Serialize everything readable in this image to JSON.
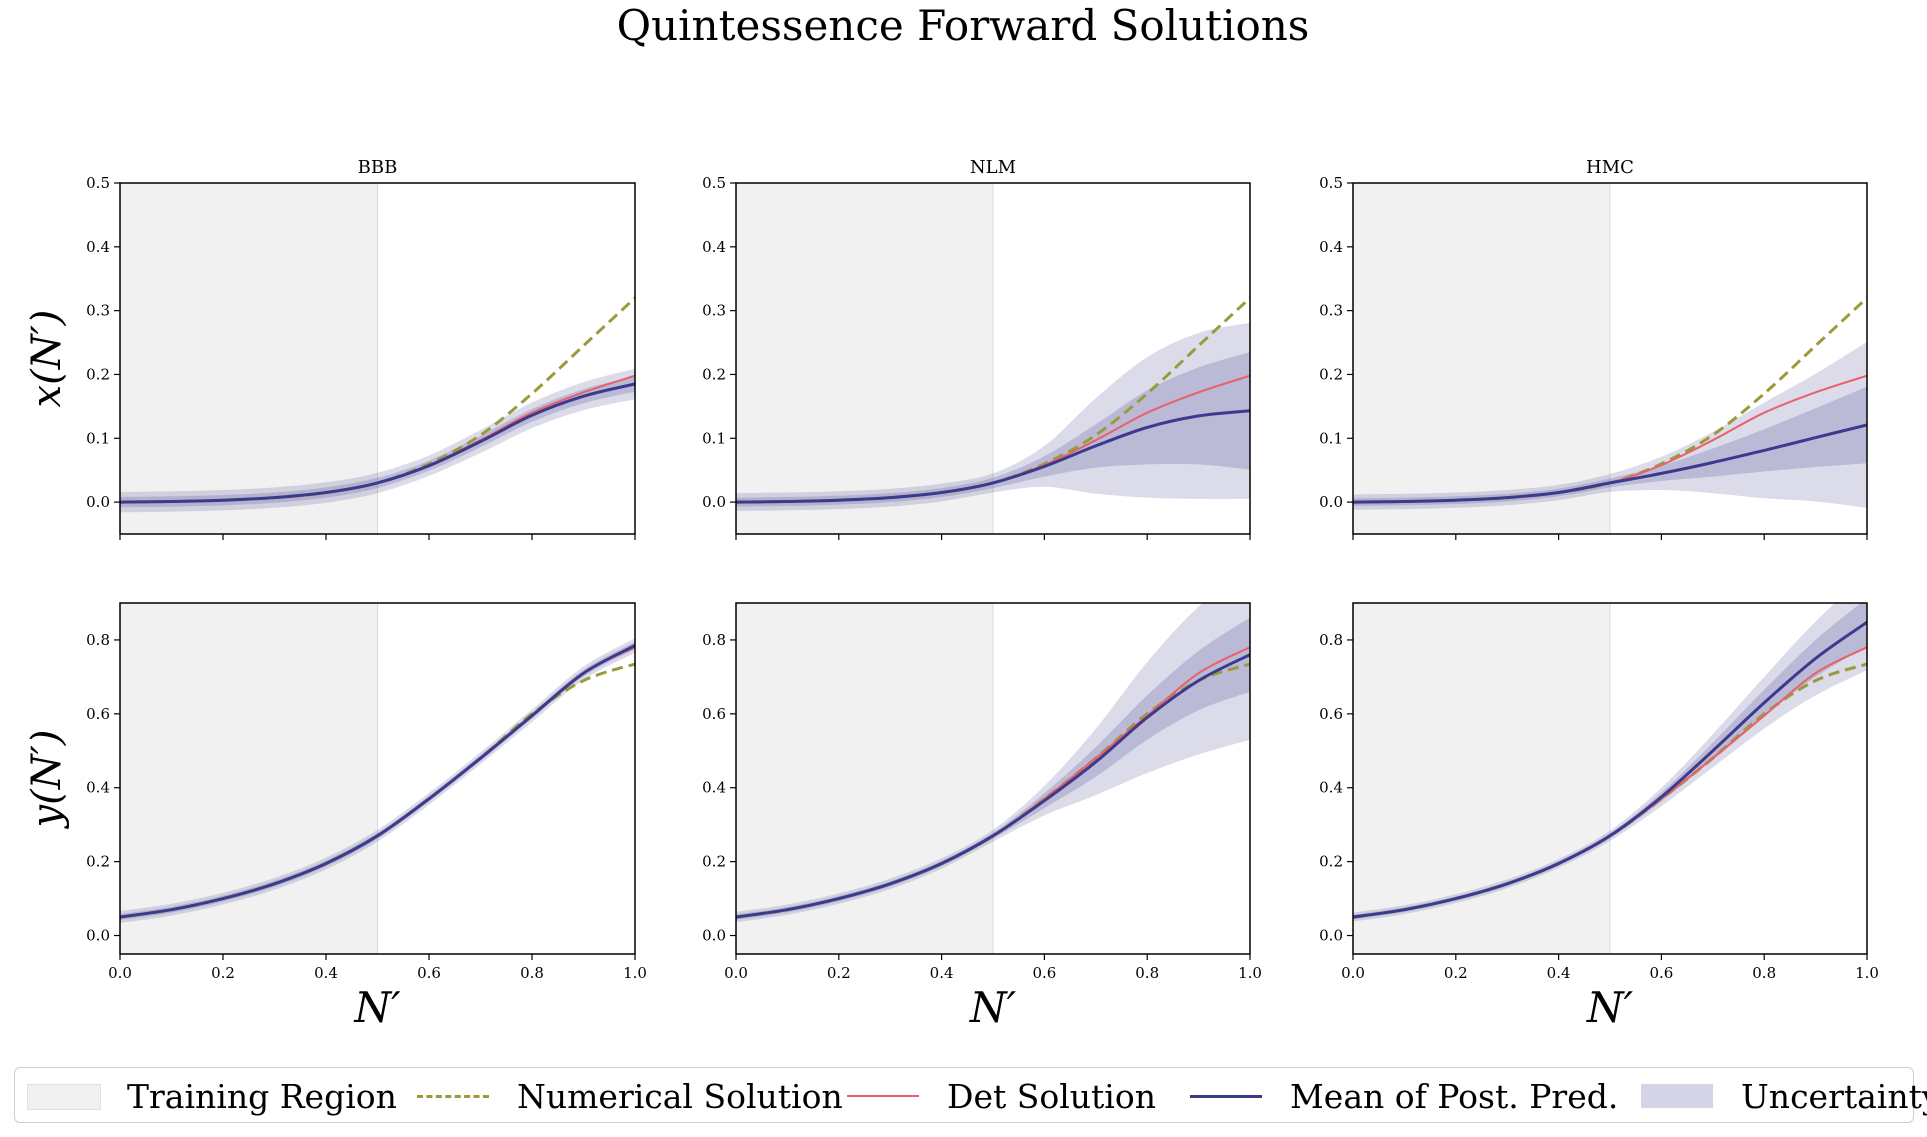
{
  "figure_title": "Quintessence Forward Solutions",
  "legend": {
    "items": [
      {
        "key": "training",
        "label": "Training Region"
      },
      {
        "key": "numerical",
        "label": "Numerical Solution"
      },
      {
        "key": "det",
        "label": "Det Solution"
      },
      {
        "key": "mean",
        "label": "Mean of Post. Pred."
      },
      {
        "key": "uncertainty",
        "label": "Uncertainty"
      }
    ]
  },
  "colors": {
    "training_region": "#f1f1f1",
    "training_edge": "#d9d9d9",
    "numerical": "#9a9a3c",
    "det": "#e8606a",
    "mean": "#3c3a8c",
    "uncertainty": "#6c69a8"
  },
  "chart_data": [
    {
      "type": "line",
      "panel": "BBB-x",
      "title": "BBB",
      "xlabel": "",
      "ylabel": "x(N′)",
      "xlim": [
        0,
        1
      ],
      "ylim": [
        -0.05,
        0.5
      ],
      "xticks": [
        "",
        "",
        "",
        "",
        "",
        ""
      ],
      "yticks": [
        0.0,
        0.1,
        0.2,
        0.3,
        0.4,
        0.5
      ],
      "ytick_labels": [
        "0.0",
        "0.1",
        "0.2",
        "0.3",
        "0.4",
        "0.5"
      ],
      "training_region": [
        0,
        0.5
      ],
      "x": [
        0,
        0.1,
        0.2,
        0.3,
        0.4,
        0.5,
        0.6,
        0.7,
        0.8,
        0.9,
        1.0
      ],
      "numerical": [
        0.0,
        0.001,
        0.003,
        0.007,
        0.015,
        0.03,
        0.06,
        0.105,
        0.17,
        0.245,
        0.32
      ],
      "det": [
        0.0,
        0.001,
        0.003,
        0.007,
        0.015,
        0.03,
        0.058,
        0.097,
        0.14,
        0.172,
        0.198
      ],
      "mean": [
        0.0,
        0.001,
        0.003,
        0.007,
        0.015,
        0.03,
        0.057,
        0.095,
        0.136,
        0.166,
        0.185
      ],
      "band_inner": [
        0.008,
        0.008,
        0.008,
        0.008,
        0.008,
        0.008,
        0.008,
        0.009,
        0.01,
        0.011,
        0.012
      ],
      "band_outer": [
        0.016,
        0.016,
        0.016,
        0.016,
        0.016,
        0.016,
        0.016,
        0.018,
        0.02,
        0.022,
        0.024
      ]
    },
    {
      "type": "line",
      "panel": "NLM-x",
      "title": "NLM",
      "xlabel": "",
      "ylabel": "",
      "xlim": [
        0,
        1
      ],
      "ylim": [
        -0.05,
        0.5
      ],
      "xticks": [
        "",
        "",
        "",
        "",
        "",
        ""
      ],
      "yticks": [
        0.0,
        0.1,
        0.2,
        0.3,
        0.4,
        0.5
      ],
      "ytick_labels": [
        "0.0",
        "0.1",
        "0.2",
        "0.3",
        "0.4",
        "0.5"
      ],
      "training_region": [
        0,
        0.5
      ],
      "x": [
        0,
        0.1,
        0.2,
        0.3,
        0.4,
        0.5,
        0.6,
        0.7,
        0.8,
        0.9,
        1.0
      ],
      "numerical": [
        0.0,
        0.001,
        0.003,
        0.007,
        0.015,
        0.03,
        0.06,
        0.105,
        0.17,
        0.245,
        0.32
      ],
      "det": [
        0.0,
        0.001,
        0.003,
        0.007,
        0.015,
        0.03,
        0.058,
        0.097,
        0.14,
        0.172,
        0.198
      ],
      "mean": [
        0.0,
        0.001,
        0.003,
        0.007,
        0.015,
        0.03,
        0.056,
        0.088,
        0.117,
        0.135,
        0.143
      ],
      "band_inner": [
        0.007,
        0.007,
        0.007,
        0.007,
        0.007,
        0.008,
        0.016,
        0.034,
        0.058,
        0.076,
        0.092
      ],
      "band_outer": [
        0.014,
        0.014,
        0.014,
        0.014,
        0.014,
        0.015,
        0.032,
        0.075,
        0.11,
        0.13,
        0.138
      ]
    },
    {
      "type": "line",
      "panel": "HMC-x",
      "title": "HMC",
      "xlabel": "",
      "ylabel": "",
      "xlim": [
        0,
        1
      ],
      "ylim": [
        -0.05,
        0.5
      ],
      "xticks": [
        "",
        "",
        "",
        "",
        "",
        ""
      ],
      "yticks": [
        0.0,
        0.1,
        0.2,
        0.3,
        0.4,
        0.5
      ],
      "ytick_labels": [
        "0.0",
        "0.1",
        "0.2",
        "0.3",
        "0.4",
        "0.5"
      ],
      "training_region": [
        0,
        0.5
      ],
      "x": [
        0,
        0.1,
        0.2,
        0.3,
        0.4,
        0.5,
        0.6,
        0.7,
        0.8,
        0.9,
        1.0
      ],
      "numerical": [
        0.0,
        0.001,
        0.003,
        0.007,
        0.015,
        0.03,
        0.06,
        0.105,
        0.17,
        0.245,
        0.32
      ],
      "det": [
        0.0,
        0.001,
        0.003,
        0.007,
        0.015,
        0.03,
        0.058,
        0.097,
        0.14,
        0.172,
        0.198
      ],
      "mean": [
        0.0,
        0.001,
        0.003,
        0.007,
        0.015,
        0.03,
        0.045,
        0.062,
        0.081,
        0.101,
        0.121
      ],
      "band_inner": [
        0.006,
        0.006,
        0.006,
        0.006,
        0.006,
        0.007,
        0.012,
        0.022,
        0.033,
        0.046,
        0.06
      ],
      "band_outer": [
        0.012,
        0.012,
        0.012,
        0.012,
        0.012,
        0.014,
        0.026,
        0.048,
        0.075,
        0.1,
        0.13
      ]
    },
    {
      "type": "line",
      "panel": "BBB-y",
      "title": "",
      "xlabel": "N′",
      "ylabel": "y(N′)",
      "xlim": [
        0,
        1
      ],
      "ylim": [
        -0.05,
        0.9
      ],
      "xticks": [
        "0.0",
        "0.2",
        "0.4",
        "0.6",
        "0.8",
        "1.0"
      ],
      "yticks": [
        0.0,
        0.2,
        0.4,
        0.6,
        0.8
      ],
      "ytick_labels": [
        "0.0",
        "0.2",
        "0.4",
        "0.6",
        "0.8"
      ],
      "training_region": [
        0,
        0.5
      ],
      "x": [
        0,
        0.1,
        0.2,
        0.3,
        0.4,
        0.5,
        0.6,
        0.7,
        0.8,
        0.9,
        1.0
      ],
      "numerical": [
        0.05,
        0.07,
        0.1,
        0.14,
        0.195,
        0.27,
        0.37,
        0.48,
        0.6,
        0.69,
        0.735
      ],
      "det": [
        0.05,
        0.07,
        0.1,
        0.14,
        0.195,
        0.27,
        0.37,
        0.48,
        0.595,
        0.71,
        0.78
      ],
      "mean": [
        0.05,
        0.07,
        0.1,
        0.14,
        0.195,
        0.27,
        0.37,
        0.48,
        0.595,
        0.71,
        0.785
      ],
      "band_inner": [
        0.008,
        0.008,
        0.008,
        0.008,
        0.008,
        0.008,
        0.008,
        0.008,
        0.008,
        0.009,
        0.01
      ],
      "band_outer": [
        0.016,
        0.016,
        0.016,
        0.016,
        0.016,
        0.016,
        0.016,
        0.016,
        0.017,
        0.018,
        0.02
      ]
    },
    {
      "type": "line",
      "panel": "NLM-y",
      "title": "",
      "xlabel": "N′",
      "ylabel": "",
      "xlim": [
        0,
        1
      ],
      "ylim": [
        -0.05,
        0.9
      ],
      "xticks": [
        "0.0",
        "0.2",
        "0.4",
        "0.6",
        "0.8",
        "1.0"
      ],
      "yticks": [
        0.0,
        0.2,
        0.4,
        0.6,
        0.8
      ],
      "ytick_labels": [
        "0.0",
        "0.2",
        "0.4",
        "0.6",
        "0.8"
      ],
      "training_region": [
        0,
        0.5
      ],
      "x": [
        0,
        0.1,
        0.2,
        0.3,
        0.4,
        0.5,
        0.6,
        0.7,
        0.8,
        0.9,
        1.0
      ],
      "numerical": [
        0.05,
        0.07,
        0.1,
        0.14,
        0.195,
        0.27,
        0.37,
        0.48,
        0.6,
        0.69,
        0.735
      ],
      "det": [
        0.05,
        0.07,
        0.1,
        0.14,
        0.195,
        0.27,
        0.37,
        0.48,
        0.595,
        0.71,
        0.78
      ],
      "mean": [
        0.05,
        0.07,
        0.1,
        0.14,
        0.195,
        0.27,
        0.365,
        0.47,
        0.59,
        0.69,
        0.76
      ],
      "band_inner": [
        0.007,
        0.007,
        0.007,
        0.007,
        0.007,
        0.008,
        0.02,
        0.04,
        0.06,
        0.08,
        0.1
      ],
      "band_outer": [
        0.014,
        0.014,
        0.014,
        0.014,
        0.014,
        0.016,
        0.04,
        0.09,
        0.15,
        0.2,
        0.23
      ]
    },
    {
      "type": "line",
      "panel": "HMC-y",
      "title": "",
      "xlabel": "N′",
      "ylabel": "",
      "xlim": [
        0,
        1
      ],
      "ylim": [
        -0.05,
        0.9
      ],
      "xticks": [
        "0.0",
        "0.2",
        "0.4",
        "0.6",
        "0.8",
        "1.0"
      ],
      "yticks": [
        0.0,
        0.2,
        0.4,
        0.6,
        0.8
      ],
      "ytick_labels": [
        "0.0",
        "0.2",
        "0.4",
        "0.6",
        "0.8"
      ],
      "training_region": [
        0,
        0.5
      ],
      "x": [
        0,
        0.1,
        0.2,
        0.3,
        0.4,
        0.5,
        0.6,
        0.7,
        0.8,
        0.9,
        1.0
      ],
      "numerical": [
        0.05,
        0.07,
        0.1,
        0.14,
        0.195,
        0.27,
        0.37,
        0.48,
        0.6,
        0.69,
        0.735
      ],
      "det": [
        0.05,
        0.07,
        0.1,
        0.14,
        0.195,
        0.27,
        0.37,
        0.48,
        0.595,
        0.71,
        0.78
      ],
      "mean": [
        0.05,
        0.07,
        0.1,
        0.14,
        0.195,
        0.27,
        0.375,
        0.5,
        0.63,
        0.75,
        0.848
      ],
      "band_inner": [
        0.006,
        0.006,
        0.006,
        0.006,
        0.006,
        0.007,
        0.012,
        0.022,
        0.035,
        0.05,
        0.065
      ],
      "band_outer": [
        0.012,
        0.012,
        0.012,
        0.012,
        0.012,
        0.014,
        0.025,
        0.045,
        0.07,
        0.1,
        0.13
      ]
    }
  ]
}
